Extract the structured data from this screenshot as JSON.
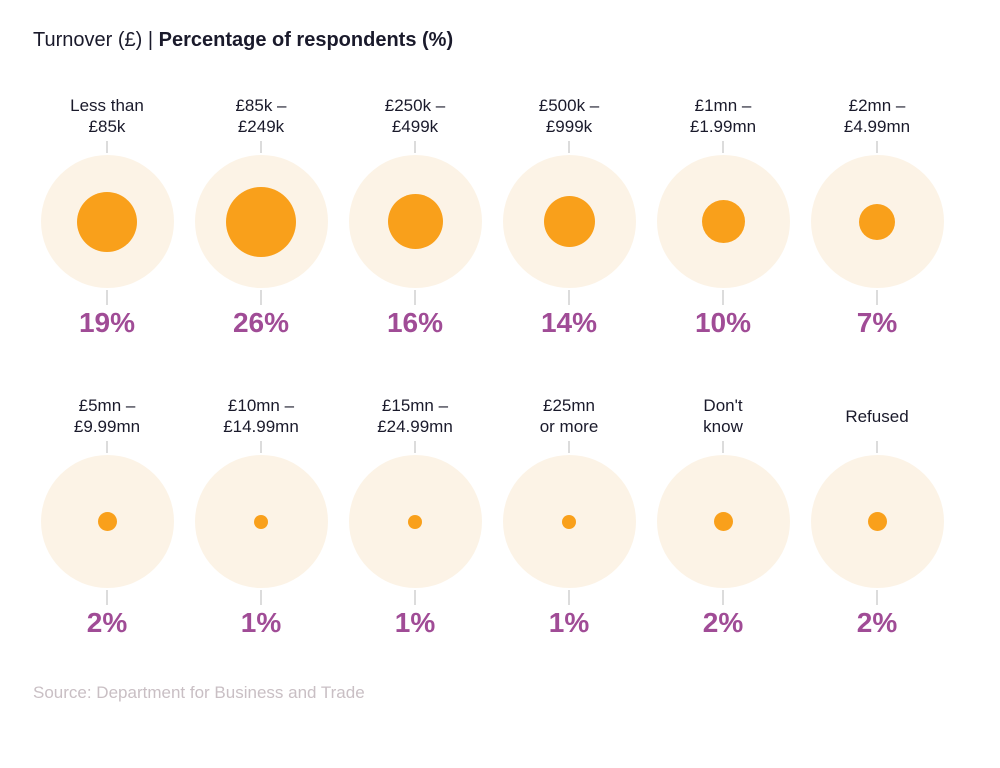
{
  "title": {
    "prefix": "Turnover (£) | ",
    "emphasis": "Percentage of respondents (%)"
  },
  "source": "Source: Department for Business and Trade",
  "colors": {
    "accent-orange": "#F9A01B",
    "halo-cream": "#FCF3E6",
    "percent-purple": "#A04C96",
    "connector-gray": "#DCDCDC",
    "title-dark": "#1A1A2B",
    "source-gray": "#C9BFC4"
  },
  "chart_data": {
    "type": "bubble",
    "title": "Turnover (£) | Percentage of respondents (%)",
    "x_dimension": "Turnover (£)",
    "y_dimension": "Percentage of respondents (%)",
    "unit": "%",
    "layout": {
      "rows": 2,
      "columns": 6,
      "size_encoding": "bubble area proportional to value",
      "legend": "none",
      "grid": "off"
    },
    "categories": [
      "Less than £85k",
      "£85k – £249k",
      "£250k – £499k",
      "£500k – £999k",
      "£1mn – £1.99mn",
      "£2mn – £4.99mn",
      "£5mn – £9.99mn",
      "£10mn – £14.99mn",
      "£15mn – £24.99mn",
      "£25mn or more",
      "Don't know",
      "Refused"
    ],
    "values": [
      19,
      26,
      16,
      14,
      10,
      7,
      2,
      1,
      1,
      1,
      2,
      2
    ],
    "items": [
      {
        "line1": "Less than",
        "line2": "£85k",
        "value": 19,
        "pct": "19%"
      },
      {
        "line1": "£85k –",
        "line2": "£249k",
        "value": 26,
        "pct": "26%"
      },
      {
        "line1": "£250k –",
        "line2": "£499k",
        "value": 16,
        "pct": "16%"
      },
      {
        "line1": "£500k –",
        "line2": "£999k",
        "value": 14,
        "pct": "14%"
      },
      {
        "line1": "£1mn –",
        "line2": "£1.99mn",
        "value": 10,
        "pct": "10%"
      },
      {
        "line1": "£2mn –",
        "line2": "£4.99mn",
        "value": 7,
        "pct": "7%"
      },
      {
        "line1": "£5mn –",
        "line2": "£9.99mn",
        "value": 2,
        "pct": "2%"
      },
      {
        "line1": "£10mn –",
        "line2": "£14.99mn",
        "value": 1,
        "pct": "1%"
      },
      {
        "line1": "£15mn –",
        "line2": "£24.99mn",
        "value": 1,
        "pct": "1%"
      },
      {
        "line1": "£25mn",
        "line2": "or more",
        "value": 1,
        "pct": "1%"
      },
      {
        "line1": "Don't",
        "line2": "know",
        "value": 2,
        "pct": "2%"
      },
      {
        "line1": "Refused",
        "line2": "",
        "value": 2,
        "pct": "2%"
      }
    ]
  }
}
